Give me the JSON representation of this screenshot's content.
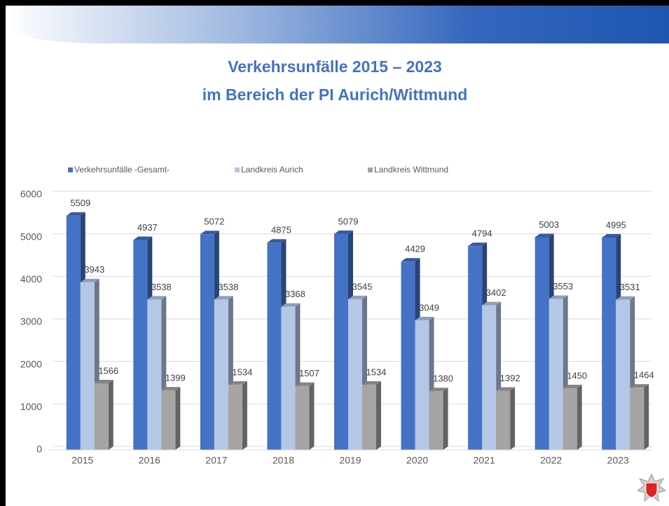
{
  "chart_data": {
    "type": "bar3d",
    "title": "Verkehrsunfälle 2015 – 2023",
    "subtitle": "im Bereich der PI Aurich/Wittmund",
    "categories": [
      "2015",
      "2016",
      "2017",
      "2018",
      "2019",
      "2020",
      "2021",
      "2022",
      "2023"
    ],
    "series": [
      {
        "name": "Verkehrsunfälle -Gesamt-",
        "color": "#4472c4",
        "values": [
          5509,
          4937,
          5072,
          4875,
          5079,
          4429,
          4794,
          5003,
          4995
        ]
      },
      {
        "name": "Landkreis Aurich",
        "color": "#b4c7e7",
        "values": [
          3943,
          3538,
          3538,
          3368,
          3545,
          3049,
          3402,
          3553,
          3531
        ]
      },
      {
        "name": "Landkreis Wittmund",
        "color": "#a5a5a5",
        "values": [
          1566,
          1399,
          1534,
          1507,
          1534,
          1380,
          1392,
          1450,
          1464
        ]
      }
    ],
    "ylim": [
      0,
      6000
    ],
    "yticks": [
      0,
      1000,
      2000,
      3000,
      4000,
      5000,
      6000
    ],
    "grid": true,
    "legend": "top"
  }
}
